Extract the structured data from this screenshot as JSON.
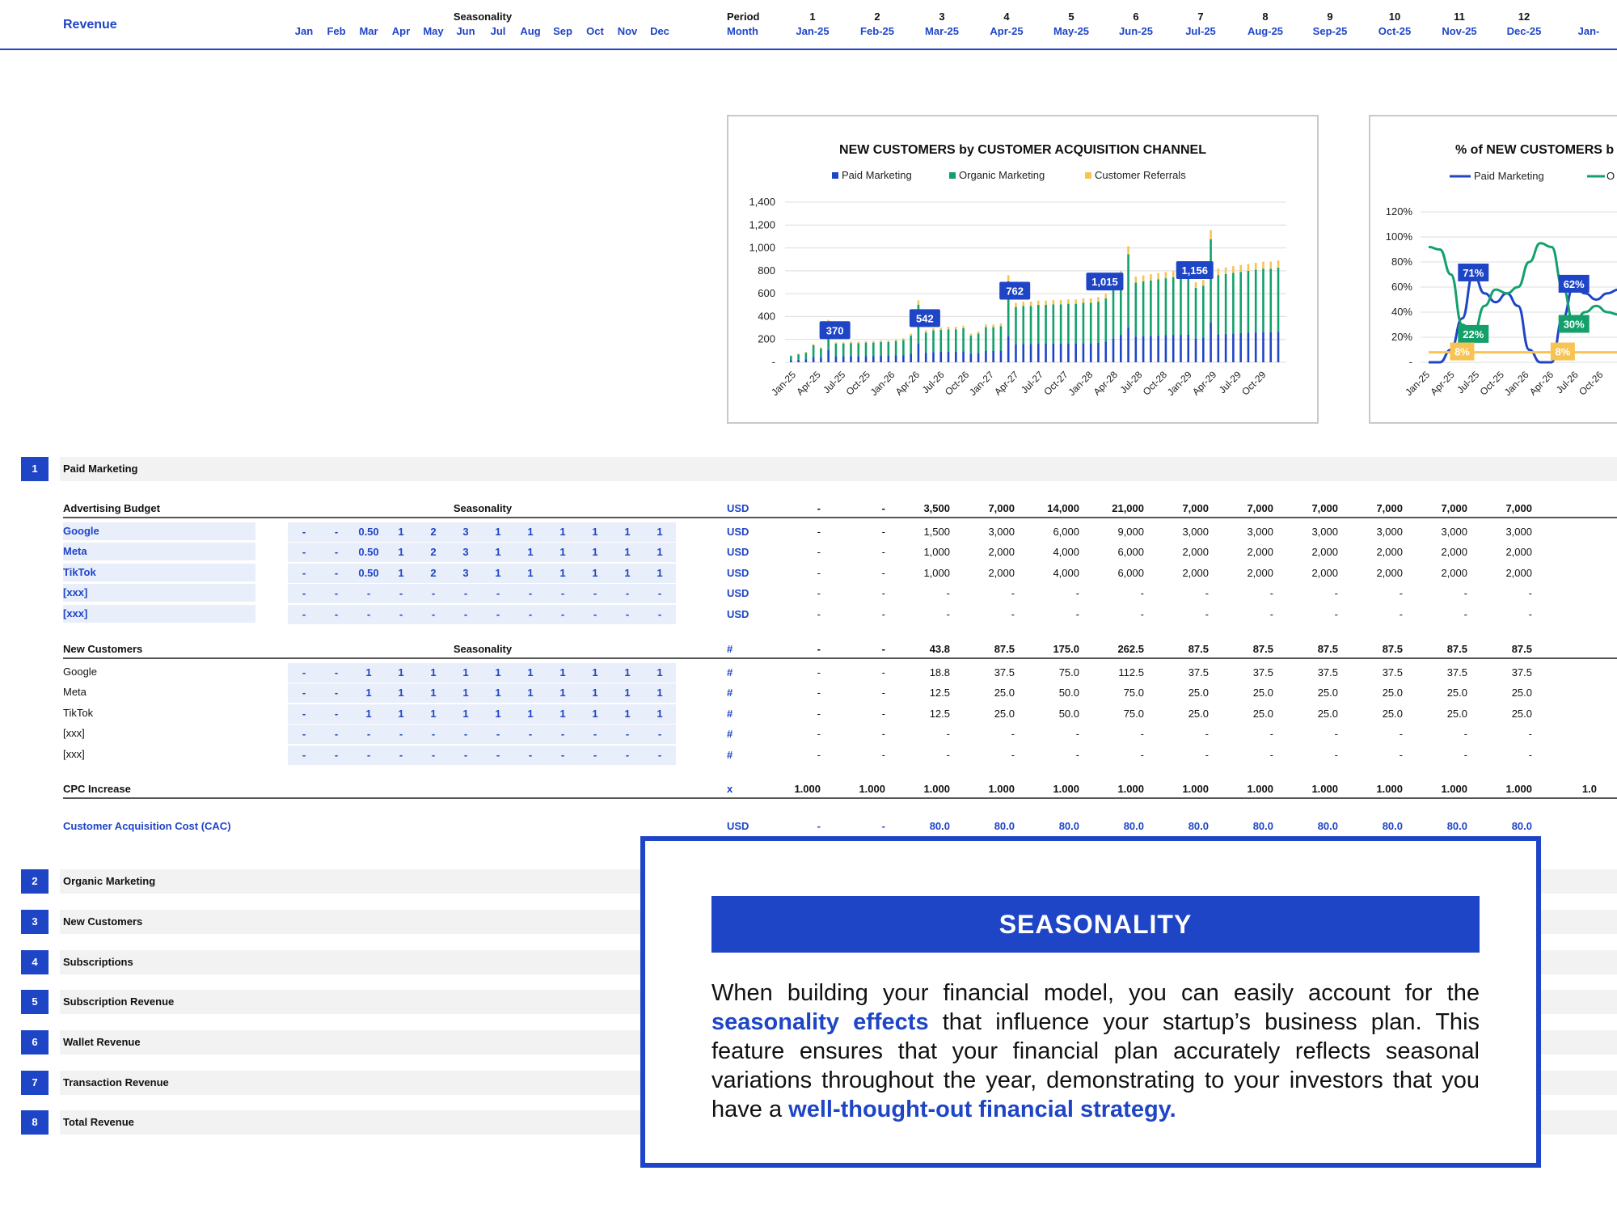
{
  "header": {
    "title": "Revenue",
    "seasonality_label": "Seasonality",
    "months": [
      "Jan",
      "Feb",
      "Mar",
      "Apr",
      "May",
      "Jun",
      "Jul",
      "Aug",
      "Sep",
      "Oct",
      "Nov",
      "Dec"
    ],
    "period_label": "Period",
    "month_label": "Month",
    "period_numbers": [
      "1",
      "2",
      "3",
      "4",
      "5",
      "6",
      "7",
      "8",
      "9",
      "10",
      "11",
      "12"
    ],
    "period_months": [
      "Jan-25",
      "Feb-25",
      "Mar-25",
      "Apr-25",
      "May-25",
      "Jun-25",
      "Jul-25",
      "Aug-25",
      "Sep-25",
      "Oct-25",
      "Nov-25",
      "Dec-25",
      "Jan-"
    ]
  },
  "chart_data": [
    {
      "type": "bar",
      "title": "NEW CUSTOMERS by CUSTOMER ACQUISITION CHANNEL",
      "legend": [
        "Paid Marketing",
        "Organic Marketing",
        "Customer Referrals"
      ],
      "colors": {
        "Paid Marketing": "#1f45c7",
        "Organic Marketing": "#13a06b",
        "Customer Referrals": "#f7c453"
      },
      "stacked": true,
      "x_tick_labels": [
        "Jan-25",
        "Apr-25",
        "Jul-25",
        "Oct-25",
        "Jan-26",
        "Apr-26",
        "Jul-26",
        "Oct-26",
        "Jan-27",
        "Apr-27",
        "Jul-27",
        "Oct-27",
        "Jan-28",
        "Apr-28",
        "Jul-28",
        "Oct-28",
        "Jan-29",
        "Apr-29",
        "Jul-29",
        "Oct-29"
      ],
      "y_tick_labels": [
        "-",
        "200",
        "400",
        "600",
        "800",
        "1,000",
        "1,200",
        "1,400"
      ],
      "ylim": [
        0,
        1400
      ],
      "data_labels": [
        {
          "month_index": 6,
          "text": "370"
        },
        {
          "month_index": 18,
          "text": "542"
        },
        {
          "month_index": 30,
          "text": "762"
        },
        {
          "month_index": 42,
          "text": "1,015"
        },
        {
          "month_index": 54,
          "text": "1,156"
        }
      ],
      "totals": [
        60,
        75,
        90,
        160,
        130,
        370,
        175,
        175,
        180,
        180,
        185,
        185,
        190,
        190,
        200,
        210,
        250,
        542,
        280,
        300,
        305,
        310,
        310,
        320,
        250,
        270,
        330,
        330,
        340,
        762,
        520,
        530,
        530,
        540,
        540,
        545,
        545,
        550,
        550,
        560,
        560,
        570,
        600,
        700,
        800,
        1015,
        750,
        760,
        770,
        780,
        790,
        800,
        800,
        810,
        700,
        720,
        1156,
        820,
        830,
        840,
        850,
        860,
        870,
        880,
        880,
        890
      ],
      "paid_share": 0.3,
      "referral_share": 0.07
    },
    {
      "type": "line",
      "title": "% of NEW CUSTOMERS b",
      "legend": [
        "Paid Marketing",
        "O"
      ],
      "colors": {
        "Paid Marketing": "#1f45c7",
        "Organic Marketing": "#13a06b",
        "Customer Referrals": "#f7c453"
      },
      "x_tick_labels": [
        "Jan-25",
        "Apr-25",
        "Jul-25",
        "Oct-25",
        "Jan-26",
        "Apr-26",
        "Jul-26",
        "Oct-26"
      ],
      "y_tick_labels": [
        "-",
        "20%",
        "40%",
        "60%",
        "80%",
        "100%",
        "120%"
      ],
      "ylim": [
        0,
        120
      ],
      "series": [
        {
          "values": [
            0,
            0,
            10,
            35,
            71,
            55,
            48,
            55,
            45,
            10,
            0,
            0,
            35,
            62,
            55,
            50,
            55,
            58
          ]
        },
        {
          "values": [
            92,
            90,
            70,
            30,
            22,
            45,
            58,
            55,
            60,
            80,
            95,
            92,
            60,
            30,
            40,
            45,
            40,
            38
          ]
        },
        {
          "values": [
            8,
            8,
            8,
            8,
            8,
            8,
            8,
            8,
            8,
            8,
            8,
            8,
            8,
            8,
            8,
            8,
            8,
            8
          ]
        }
      ],
      "data_labels": [
        {
          "series": 0,
          "text": "71%"
        },
        {
          "series": 1,
          "text": "22%"
        },
        {
          "series": 2,
          "text": "8%"
        },
        {
          "series": 0,
          "text": "62%"
        },
        {
          "series": 1,
          "text": "30%"
        },
        {
          "series": 2,
          "text": "8%"
        }
      ]
    }
  ],
  "sections": [
    {
      "num": "1",
      "label": "Paid Marketing"
    },
    {
      "num": "2",
      "label": "Organic Marketing"
    },
    {
      "num": "3",
      "label": "New Customers"
    },
    {
      "num": "4",
      "label": "Subscriptions"
    },
    {
      "num": "5",
      "label": "Subscription Revenue"
    },
    {
      "num": "6",
      "label": "Wallet Revenue"
    },
    {
      "num": "7",
      "label": "Transaction Revenue"
    },
    {
      "num": "8",
      "label": "Total Revenue"
    }
  ],
  "paid": {
    "budget": {
      "label": "Advertising Budget",
      "seasonality_label": "Seasonality",
      "unit": "USD",
      "values": [
        "-",
        "-",
        "3,500",
        "7,000",
        "14,000",
        "21,000",
        "7,000",
        "7,000",
        "7,000",
        "7,000",
        "7,000",
        "7,000"
      ],
      "rows": [
        {
          "label": "Google",
          "unit": "USD",
          "season": [
            "-",
            "-",
            "0.50",
            "1",
            "2",
            "3",
            "1",
            "1",
            "1",
            "1",
            "1",
            "1"
          ],
          "values": [
            "-",
            "-",
            "1,500",
            "3,000",
            "6,000",
            "9,000",
            "3,000",
            "3,000",
            "3,000",
            "3,000",
            "3,000",
            "3,000"
          ]
        },
        {
          "label": "Meta",
          "unit": "USD",
          "season": [
            "-",
            "-",
            "0.50",
            "1",
            "2",
            "3",
            "1",
            "1",
            "1",
            "1",
            "1",
            "1"
          ],
          "values": [
            "-",
            "-",
            "1,000",
            "2,000",
            "4,000",
            "6,000",
            "2,000",
            "2,000",
            "2,000",
            "2,000",
            "2,000",
            "2,000"
          ]
        },
        {
          "label": "TikTok",
          "unit": "USD",
          "season": [
            "-",
            "-",
            "0.50",
            "1",
            "2",
            "3",
            "1",
            "1",
            "1",
            "1",
            "1",
            "1"
          ],
          "values": [
            "-",
            "-",
            "1,000",
            "2,000",
            "4,000",
            "6,000",
            "2,000",
            "2,000",
            "2,000",
            "2,000",
            "2,000",
            "2,000"
          ]
        },
        {
          "label": "[xxx]",
          "unit": "USD",
          "season": [
            "-",
            "-",
            "-",
            "-",
            "-",
            "-",
            "-",
            "-",
            "-",
            "-",
            "-",
            "-"
          ],
          "values": [
            "-",
            "-",
            "-",
            "-",
            "-",
            "-",
            "-",
            "-",
            "-",
            "-",
            "-",
            "-"
          ]
        },
        {
          "label": "[xxx]",
          "unit": "USD",
          "season": [
            "-",
            "-",
            "-",
            "-",
            "-",
            "-",
            "-",
            "-",
            "-",
            "-",
            "-",
            "-"
          ],
          "values": [
            "-",
            "-",
            "-",
            "-",
            "-",
            "-",
            "-",
            "-",
            "-",
            "-",
            "-",
            "-"
          ]
        }
      ]
    },
    "new_customers": {
      "label": "New Customers",
      "seasonality_label": "Seasonality",
      "unit": "#",
      "values": [
        "-",
        "-",
        "43.8",
        "87.5",
        "175.0",
        "262.5",
        "87.5",
        "87.5",
        "87.5",
        "87.5",
        "87.5",
        "87.5"
      ],
      "rows": [
        {
          "label": "Google",
          "unit": "#",
          "season": [
            "-",
            "-",
            "1",
            "1",
            "1",
            "1",
            "1",
            "1",
            "1",
            "1",
            "1",
            "1"
          ],
          "values": [
            "-",
            "-",
            "18.8",
            "37.5",
            "75.0",
            "112.5",
            "37.5",
            "37.5",
            "37.5",
            "37.5",
            "37.5",
            "37.5"
          ]
        },
        {
          "label": "Meta",
          "unit": "#",
          "season": [
            "-",
            "-",
            "1",
            "1",
            "1",
            "1",
            "1",
            "1",
            "1",
            "1",
            "1",
            "1"
          ],
          "values": [
            "-",
            "-",
            "12.5",
            "25.0",
            "50.0",
            "75.0",
            "25.0",
            "25.0",
            "25.0",
            "25.0",
            "25.0",
            "25.0"
          ]
        },
        {
          "label": "TikTok",
          "unit": "#",
          "season": [
            "-",
            "-",
            "1",
            "1",
            "1",
            "1",
            "1",
            "1",
            "1",
            "1",
            "1",
            "1"
          ],
          "values": [
            "-",
            "-",
            "12.5",
            "25.0",
            "50.0",
            "75.0",
            "25.0",
            "25.0",
            "25.0",
            "25.0",
            "25.0",
            "25.0"
          ]
        },
        {
          "label": "[xxx]",
          "unit": "#",
          "season": [
            "-",
            "-",
            "-",
            "-",
            "-",
            "-",
            "-",
            "-",
            "-",
            "-",
            "-",
            "-"
          ],
          "values": [
            "-",
            "-",
            "-",
            "-",
            "-",
            "-",
            "-",
            "-",
            "-",
            "-",
            "-",
            "-"
          ]
        },
        {
          "label": "[xxx]",
          "unit": "#",
          "season": [
            "-",
            "-",
            "-",
            "-",
            "-",
            "-",
            "-",
            "-",
            "-",
            "-",
            "-",
            "-"
          ],
          "values": [
            "-",
            "-",
            "-",
            "-",
            "-",
            "-",
            "-",
            "-",
            "-",
            "-",
            "-",
            "-"
          ]
        }
      ]
    },
    "cpc": {
      "label": "CPC Increase",
      "unit": "x",
      "values": [
        "1.000",
        "1.000",
        "1.000",
        "1.000",
        "1.000",
        "1.000",
        "1.000",
        "1.000",
        "1.000",
        "1.000",
        "1.000",
        "1.000",
        "1.0"
      ]
    },
    "cac": {
      "label": "Customer Acquisition Cost (CAC)",
      "unit": "USD",
      "values": [
        "-",
        "-",
        "80.0",
        "80.0",
        "80.0",
        "80.0",
        "80.0",
        "80.0",
        "80.0",
        "80.0",
        "80.0",
        "80.0"
      ]
    }
  },
  "seasonality_box": {
    "title": "SEASONALITY",
    "text_1": "When building your financial model, you can easily account for the ",
    "highlight_1": "seasonality effects",
    "text_2": " that influence your startup’s business plan. This feature ensures that your financial plan accurately reflects seasonal variations throughout the year, demonstrating to your investors that you have a ",
    "highlight_2": "well-thought-out financial strategy."
  }
}
